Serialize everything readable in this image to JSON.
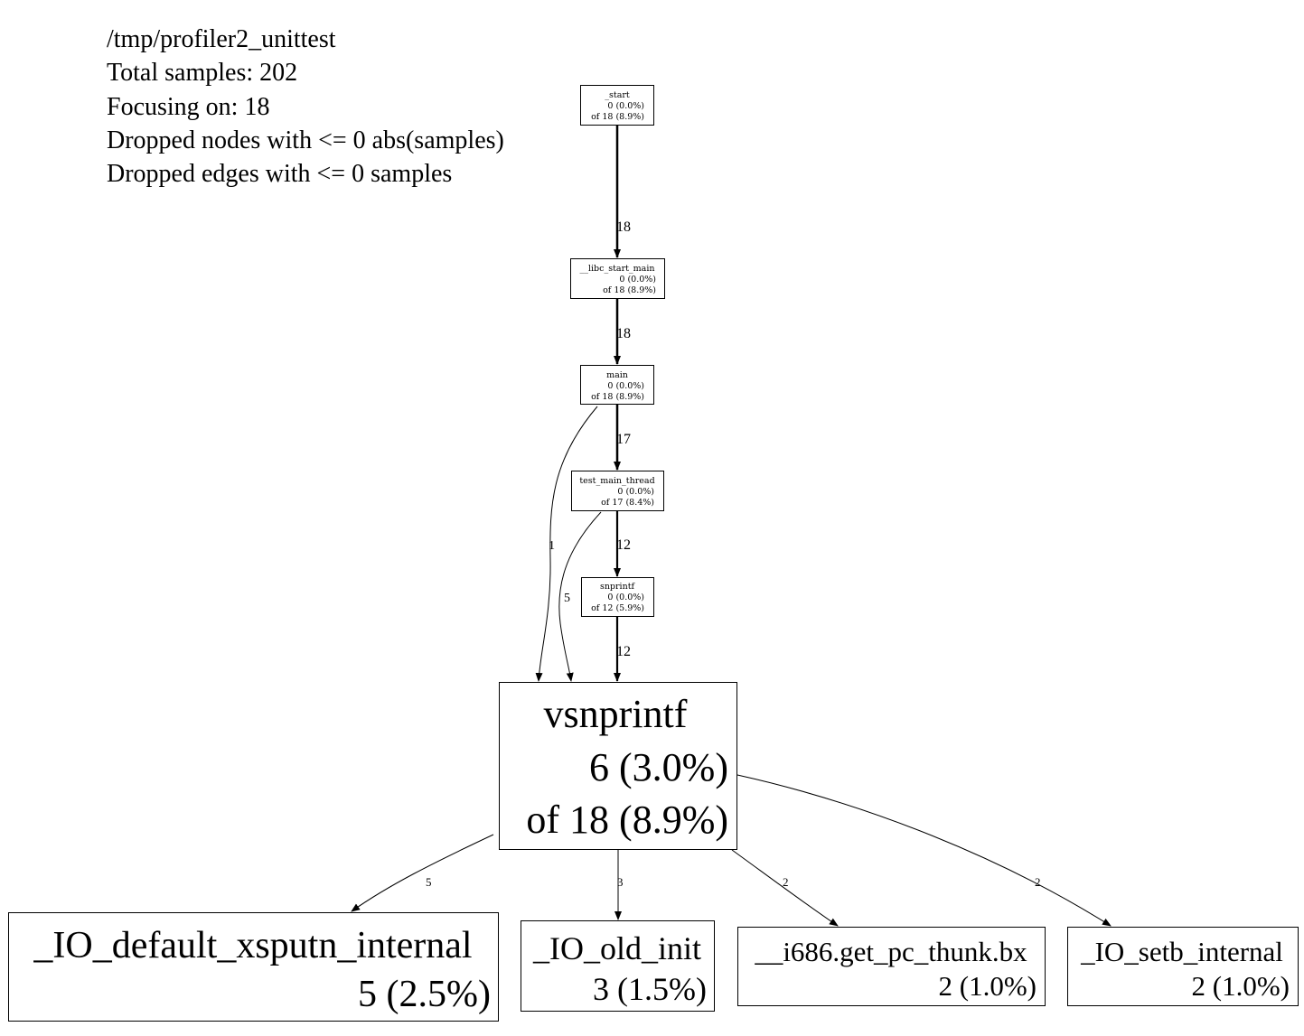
{
  "header": {
    "lines": [
      "/tmp/profiler2_unittest",
      "Total samples: 202",
      "Focusing on: 18",
      "Dropped nodes with <= 0 abs(samples)",
      "Dropped edges with <= 0 samples"
    ]
  },
  "nodes": [
    {
      "name": "_start",
      "self": "0 (0.0%)",
      "total": "of 18 (8.9%)"
    },
    {
      "name": "__libc_start_main",
      "self": "0 (0.0%)",
      "total": "of 18 (8.9%)"
    },
    {
      "name": "main",
      "self": "0 (0.0%)",
      "total": "of 18 (8.9%)"
    },
    {
      "name": "test_main_thread",
      "self": "0 (0.0%)",
      "total": "of 17 (8.4%)"
    },
    {
      "name": "snprintf",
      "self": "0 (0.0%)",
      "total": "of 12 (5.9%)"
    },
    {
      "name": "vsnprintf",
      "self": "6 (3.0%)",
      "total": "of 18 (8.9%)"
    },
    {
      "name": "_IO_default_xsputn_internal",
      "self": "5 (2.5%)"
    },
    {
      "name": "_IO_old_init",
      "self": "3 (1.5%)"
    },
    {
      "name": "__i686.get_pc_thunk.bx",
      "self": "2 (1.0%)"
    },
    {
      "name": "_IO_setb_internal",
      "self": "2 (1.0%)"
    }
  ],
  "edges": [
    {
      "from": "_start",
      "to": "__libc_start_main",
      "label": "18"
    },
    {
      "from": "__libc_start_main",
      "to": "main",
      "label": "18"
    },
    {
      "from": "main",
      "to": "test_main_thread",
      "label": "17"
    },
    {
      "from": "test_main_thread",
      "to": "snprintf",
      "label": "12"
    },
    {
      "from": "snprintf",
      "to": "vsnprintf",
      "label": "12"
    },
    {
      "from": "main",
      "to": "vsnprintf",
      "label": "1"
    },
    {
      "from": "test_main_thread",
      "to": "vsnprintf",
      "label": "5"
    },
    {
      "from": "vsnprintf",
      "to": "_IO_default_xsputn_internal",
      "label": "5"
    },
    {
      "from": "vsnprintf",
      "to": "_IO_old_init",
      "label": "3"
    },
    {
      "from": "vsnprintf",
      "to": "__i686.get_pc_thunk.bx",
      "label": "2"
    },
    {
      "from": "vsnprintf",
      "to": "_IO_setb_internal",
      "label": "2"
    }
  ]
}
